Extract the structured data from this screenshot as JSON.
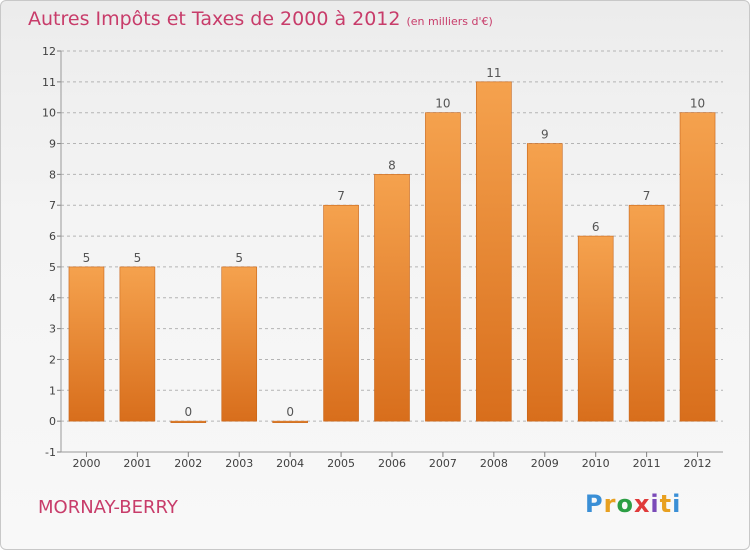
{
  "header": {
    "title": "Autres Impôts et Taxes de 2000 à 2012",
    "unit": "(en milliers d'€)"
  },
  "footer": {
    "commune": "MORNAY-BERRY",
    "logo_text": "Proxiti",
    "logo_colors": [
      "#3a8fd6",
      "#e8a020",
      "#2c9e44",
      "#e03a3a",
      "#7a4ab8",
      "#e8a020",
      "#3a8fd6"
    ]
  },
  "colors": {
    "title": "#c83c6a",
    "bar_light": "#f5a24e",
    "bar_dark": "#d86e1c",
    "grid": "#b4b4b4",
    "axis_text": "#404040"
  },
  "chart_data": {
    "type": "bar",
    "categories": [
      "2000",
      "2001",
      "2002",
      "2003",
      "2004",
      "2005",
      "2006",
      "2007",
      "2008",
      "2009",
      "2010",
      "2011",
      "2012"
    ],
    "values": [
      5,
      5,
      0,
      5,
      0,
      7,
      8,
      10,
      11,
      9,
      6,
      7,
      10
    ],
    "data_labels": [
      "5",
      "5",
      "0",
      "5",
      "0",
      "7",
      "8",
      "10",
      "11",
      "9",
      "6",
      "7",
      "10"
    ],
    "y_ticks": [
      "-1",
      "0",
      "1",
      "2",
      "3",
      "4",
      "5",
      "6",
      "7",
      "8",
      "9",
      "10",
      "11",
      "12"
    ],
    "ylim": [
      -1,
      12
    ],
    "grid": true,
    "legend": "none"
  }
}
